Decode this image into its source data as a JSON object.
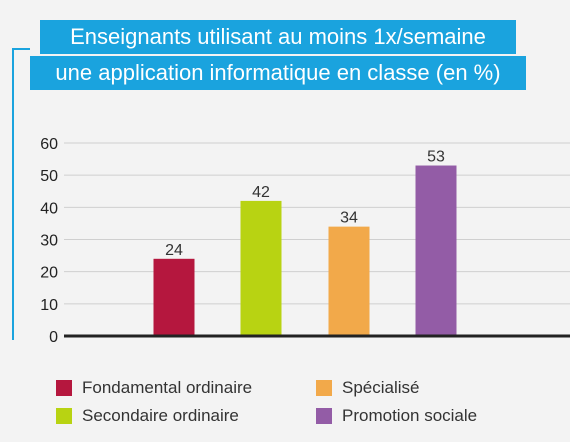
{
  "chart_data": {
    "type": "bar",
    "title_lines": [
      "Enseignants utilisant au moins  1x/semaine",
      "une application informatique en classe (en %)"
    ],
    "categories": [
      "Fondamental ordinaire",
      "Secondaire ordinaire",
      "Spécialisé",
      "Promotion sociale"
    ],
    "values": [
      24,
      42,
      34,
      53
    ],
    "data_labels": [
      "24",
      "42",
      "34",
      "53"
    ],
    "colors": [
      "#b5173e",
      "#b8d312",
      "#f2a94a",
      "#935ca6"
    ],
    "ylim": [
      0,
      60
    ],
    "yticks": [
      "0",
      "10",
      "20",
      "30",
      "40",
      "50",
      "60"
    ],
    "xlabel": "",
    "ylabel": "",
    "grid": true,
    "legend_position": "bottom"
  },
  "colors": {
    "accent": "#1aa3de",
    "grid": "#cfcfcf",
    "axis": "#222222"
  }
}
